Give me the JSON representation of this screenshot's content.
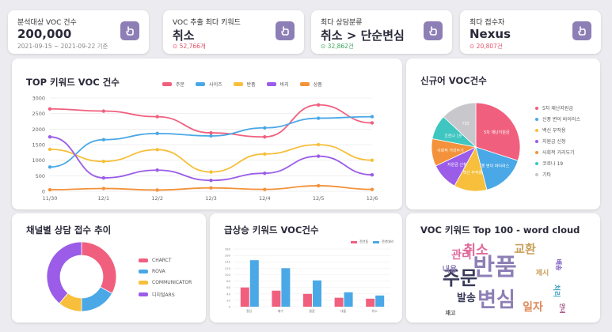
{
  "kpis": [
    {
      "label": "분석대상 VOC 건수",
      "value": "200,000",
      "sub": "2021-09-15 ~ 2021-09-22 기준",
      "sub_style": "plain"
    },
    {
      "label": "VOC 추출 최다 키워드",
      "value": "취소",
      "sub": "⊙ 52,766개",
      "sub_style": "red"
    },
    {
      "label": "최다 상담분류",
      "value": "취소 > 단순변심",
      "sub": "⊙ 32,862건",
      "sub_style": "green"
    },
    {
      "label": "최다 접수자",
      "value": "Nexus",
      "sub": "⊙ 20,807건",
      "sub_style": "red"
    }
  ],
  "line_chart": {
    "title": "TOP 키워드 VOC 건수",
    "chart_data": {
      "type": "line",
      "x": [
        "11/30",
        "12/1",
        "12/2",
        "12/3",
        "12/4",
        "12/5",
        "12/6"
      ],
      "ylim": [
        0,
        3000
      ],
      "yticks": [
        "0",
        "500",
        "1000",
        "1500",
        "2000",
        "2500",
        "3000"
      ],
      "series": [
        {
          "name": "주문",
          "color": "#f0607e",
          "values": [
            2650,
            2580,
            2400,
            1880,
            1750,
            2780,
            2200
          ]
        },
        {
          "name": "사이즈",
          "color": "#4aa8e6",
          "values": [
            780,
            1660,
            1860,
            1780,
            2040,
            2350,
            2400
          ]
        },
        {
          "name": "반품",
          "color": "#f7bf3b",
          "values": [
            1350,
            960,
            1340,
            620,
            1200,
            1500,
            1000
          ]
        },
        {
          "name": "바지",
          "color": "#9b5ce8",
          "values": [
            1750,
            430,
            680,
            350,
            580,
            1130,
            530
          ]
        },
        {
          "name": "상품",
          "color": "#f3923a",
          "values": [
            50,
            90,
            40,
            110,
            60,
            180,
            60
          ]
        }
      ]
    }
  },
  "pie_chart": {
    "title": "신규어 VOC건수",
    "chart_data": {
      "type": "pie",
      "slices": [
        {
          "label": "5차 재난지원금",
          "value": 30,
          "color": "#f0607e"
        },
        {
          "label": "신풍 변이 바이러스",
          "value": 16,
          "color": "#4aa8e6"
        },
        {
          "label": "백신 부작용",
          "value": 12,
          "color": "#f7bf3b"
        },
        {
          "label": "지원금 신청",
          "value": 10,
          "color": "#9b5ce8"
        },
        {
          "label": "사회적 거리두기",
          "value": 10,
          "color": "#f3923a"
        },
        {
          "label": "코로나 19",
          "value": 9,
          "color": "#3fc6c0"
        },
        {
          "label": "기타",
          "value": 13,
          "color": "#c8c8cc"
        }
      ]
    }
  },
  "donut_chart": {
    "title": "채널별 상담 접수 추이",
    "chart_data": {
      "type": "pie",
      "slices": [
        {
          "label": "CHARCT",
          "value": 33,
          "color": "#f0607e"
        },
        {
          "label": "ROVA",
          "value": 17,
          "color": "#4aa8e6"
        },
        {
          "label": "COMMUNICATOR",
          "value": 11,
          "color": "#f7bf3b"
        },
        {
          "label": "디지털ARS",
          "value": 39,
          "color": "#9b5ce8"
        }
      ]
    }
  },
  "bar_chart": {
    "title": "급상승 키워드 VOC건수",
    "chart_data": {
      "type": "bar",
      "categories": [
        "팔당",
        "매수",
        "물품",
        "대출",
        "취소"
      ],
      "ylim": [
        0,
        180
      ],
      "yticks": [
        "0",
        "20",
        "40",
        "60",
        "80",
        "100",
        "120",
        "140",
        "160",
        "180"
      ],
      "series": [
        {
          "name": "전년동",
          "color": "#f0607e",
          "values": [
            60,
            50,
            40,
            28,
            25
          ]
        },
        {
          "name": "전년대비",
          "color": "#4aa8e6",
          "values": [
            145,
            120,
            82,
            45,
            35
          ]
        }
      ]
    }
  },
  "wordcloud": {
    "title": "VOC 키워드 Top 100 - word cloud",
    "words": [
      {
        "text": "반품",
        "color": "#8d7fb6",
        "size": 30
      },
      {
        "text": "변심",
        "color": "#8d7fb6",
        "size": 26
      },
      {
        "text": "주문",
        "color": "#3a3a5a",
        "size": 24
      },
      {
        "text": "취소",
        "color": "#e06a9a",
        "size": 17
      },
      {
        "text": "교환",
        "color": "#c8a05a",
        "size": 15
      },
      {
        "text": "관리",
        "color": "#e06a9a",
        "size": 14
      },
      {
        "text": "발송",
        "color": "#3a3a5a",
        "size": 13
      },
      {
        "text": "일자",
        "color": "#e08a5a",
        "size": 14
      },
      {
        "text": "내용",
        "color": "#8d7fb6",
        "size": 10
      },
      {
        "text": "제시",
        "color": "#c8a05a",
        "size": 9
      },
      {
        "text": "처리",
        "color": "#3fa0c0",
        "size": 9
      },
      {
        "text": "배송",
        "color": "#7a5ac0",
        "size": 8
      },
      {
        "text": "재고",
        "color": "#555",
        "size": 7
      },
      {
        "text": "안내",
        "color": "#a04a7a",
        "size": 7
      }
    ]
  }
}
